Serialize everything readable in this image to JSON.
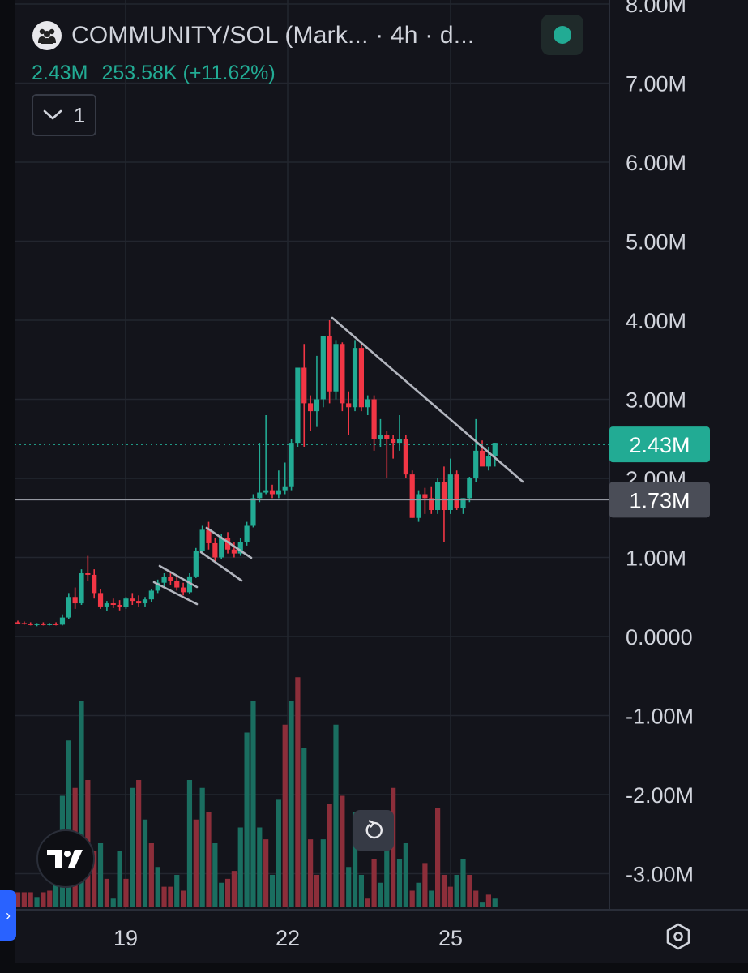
{
  "header": {
    "title": "COMMUNITY/SOL (Mark... · 4h · d...",
    "value": "2.43M",
    "change": "253.58K (+11.62%)",
    "indicator_count": "1"
  },
  "colors": {
    "up": "#22ab94",
    "down": "#f23645",
    "up_volume": "#1a6e60",
    "down_volume": "#8c2e3a",
    "background": "#13141b",
    "grid": "#23262f",
    "text": "#d1d4dc"
  },
  "icons": {
    "avatar": "community-avatar-icon",
    "status": "status-dot-icon",
    "collapse": "chevron-down-icon",
    "reset": "reset-icon",
    "logo": "tradingview-logo-icon",
    "settings": "settings-icon",
    "side_panel": "chevron-right-icon"
  },
  "chart_data": {
    "type": "candlestick",
    "y_axis": {
      "ticks": [
        -3000000,
        -2000000,
        -1000000,
        0,
        1000000,
        2000000,
        3000000,
        4000000,
        5000000,
        6000000,
        7000000,
        8000000
      ],
      "tick_labels": [
        "-3.00M",
        "-2.00M",
        "-1.00M",
        "0.0000",
        "1.00M",
        "2.00M",
        "3.00M",
        "4.00M",
        "5.00M",
        "6.00M",
        "7.00M",
        "8.00M"
      ],
      "range": [
        -3400000,
        8100000
      ]
    },
    "x_axis": {
      "tick_labels": [
        "19",
        "22",
        "25"
      ]
    },
    "price_labels": {
      "last": {
        "value": 2430000,
        "label": "2.43M"
      },
      "crosshair": {
        "value": 1730000,
        "label": "1.73M"
      }
    },
    "grid": true,
    "candles": [
      [
        0.18,
        0.2,
        0.16,
        0.17
      ],
      [
        0.17,
        0.19,
        0.15,
        0.16
      ],
      [
        0.16,
        0.18,
        0.14,
        0.15
      ],
      [
        0.15,
        0.17,
        0.13,
        0.16
      ],
      [
        0.16,
        0.18,
        0.14,
        0.15
      ],
      [
        0.15,
        0.17,
        0.14,
        0.16
      ],
      [
        0.16,
        0.18,
        0.14,
        0.15
      ],
      [
        0.15,
        0.28,
        0.14,
        0.24
      ],
      [
        0.24,
        0.55,
        0.22,
        0.5
      ],
      [
        0.5,
        0.62,
        0.35,
        0.42
      ],
      [
        0.42,
        0.85,
        0.4,
        0.8
      ],
      [
        0.8,
        1.02,
        0.7,
        0.78
      ],
      [
        0.78,
        0.85,
        0.48,
        0.55
      ],
      [
        0.55,
        0.6,
        0.35,
        0.38
      ],
      [
        0.38,
        0.45,
        0.32,
        0.42
      ],
      [
        0.42,
        0.48,
        0.36,
        0.4
      ],
      [
        0.4,
        0.46,
        0.33,
        0.37
      ],
      [
        0.37,
        0.5,
        0.35,
        0.48
      ],
      [
        0.48,
        0.55,
        0.4,
        0.45
      ],
      [
        0.45,
        0.52,
        0.38,
        0.42
      ],
      [
        0.42,
        0.5,
        0.38,
        0.47
      ],
      [
        0.47,
        0.6,
        0.44,
        0.58
      ],
      [
        0.58,
        0.72,
        0.55,
        0.68
      ],
      [
        0.68,
        0.8,
        0.62,
        0.75
      ],
      [
        0.75,
        0.82,
        0.65,
        0.7
      ],
      [
        0.7,
        0.78,
        0.58,
        0.62
      ],
      [
        0.62,
        0.68,
        0.52,
        0.56
      ],
      [
        0.56,
        0.8,
        0.54,
        0.76
      ],
      [
        0.76,
        1.12,
        0.74,
        1.08
      ],
      [
        1.08,
        1.4,
        1.05,
        1.35
      ],
      [
        1.35,
        1.45,
        1.1,
        1.18
      ],
      [
        1.18,
        1.25,
        0.95,
        1.0
      ],
      [
        1.0,
        1.3,
        0.98,
        1.25
      ],
      [
        1.25,
        1.32,
        1.05,
        1.1
      ],
      [
        1.1,
        1.2,
        1.0,
        1.05
      ],
      [
        1.05,
        1.25,
        1.02,
        1.2
      ],
      [
        1.2,
        1.45,
        1.15,
        1.4
      ],
      [
        1.4,
        1.8,
        1.38,
        1.75
      ],
      [
        1.75,
        2.45,
        1.7,
        1.82
      ],
      [
        1.82,
        2.8,
        1.8,
        1.85
      ],
      [
        1.85,
        1.92,
        1.75,
        1.8
      ],
      [
        1.8,
        2.1,
        1.75,
        1.85
      ],
      [
        1.85,
        2.2,
        1.8,
        1.9
      ],
      [
        1.9,
        2.5,
        1.85,
        2.45
      ],
      [
        2.45,
        3.4,
        2.4,
        3.4
      ],
      [
        3.4,
        3.7,
        2.4,
        2.95
      ],
      [
        2.95,
        3.05,
        2.6,
        2.85
      ],
      [
        2.85,
        3.55,
        2.65,
        3.0
      ],
      [
        3.0,
        3.4,
        2.9,
        3.8
      ],
      [
        3.8,
        4.0,
        2.95,
        3.1
      ],
      [
        3.1,
        3.75,
        3.0,
        3.7
      ],
      [
        3.7,
        3.72,
        2.85,
        2.95
      ],
      [
        2.95,
        3.1,
        2.55,
        2.9
      ],
      [
        2.9,
        3.75,
        2.85,
        3.65
      ],
      [
        3.65,
        3.7,
        2.85,
        2.9
      ],
      [
        2.9,
        3.05,
        2.8,
        3.0
      ],
      [
        3.0,
        3.05,
        2.35,
        2.5
      ],
      [
        2.5,
        2.75,
        2.4,
        2.55
      ],
      [
        2.55,
        2.6,
        2.0,
        2.5
      ],
      [
        2.5,
        2.55,
        2.25,
        2.45
      ],
      [
        2.45,
        2.8,
        2.35,
        2.5
      ],
      [
        2.5,
        2.55,
        2.0,
        2.05
      ],
      [
        2.05,
        2.1,
        1.5,
        1.5
      ],
      [
        1.5,
        1.85,
        1.45,
        1.8
      ],
      [
        1.8,
        1.88,
        1.55,
        1.75
      ],
      [
        1.75,
        1.9,
        1.55,
        1.6
      ],
      [
        1.6,
        2.0,
        1.55,
        1.95
      ],
      [
        1.95,
        2.15,
        1.2,
        1.6
      ],
      [
        1.6,
        2.25,
        1.55,
        2.05
      ],
      [
        2.05,
        2.1,
        1.6,
        1.62
      ],
      [
        1.62,
        1.75,
        1.55,
        1.75
      ],
      [
        1.75,
        2.02,
        1.7,
        2.0
      ],
      [
        2.0,
        2.75,
        1.95,
        2.35
      ],
      [
        2.35,
        2.48,
        2.18,
        2.15
      ],
      [
        2.15,
        2.4,
        2.1,
        2.28
      ],
      [
        2.28,
        2.45,
        2.15,
        2.45
      ]
    ],
    "volumes": [
      [
        0.18,
        0
      ],
      [
        0.18,
        0
      ],
      [
        0.18,
        0
      ],
      [
        0.12,
        1
      ],
      [
        0.18,
        0
      ],
      [
        0.2,
        0
      ],
      [
        0.3,
        1
      ],
      [
        1.4,
        1
      ],
      [
        2.1,
        1
      ],
      [
        1.5,
        0
      ],
      [
        2.6,
        1
      ],
      [
        1.6,
        0
      ],
      [
        0.7,
        0
      ],
      [
        0.8,
        1
      ],
      [
        0.35,
        0
      ],
      [
        0.1,
        1
      ],
      [
        0.7,
        1
      ],
      [
        0.35,
        0
      ],
      [
        1.5,
        1
      ],
      [
        1.6,
        0
      ],
      [
        1.1,
        1
      ],
      [
        0.8,
        0
      ],
      [
        0.5,
        1
      ],
      [
        0.25,
        0
      ],
      [
        0.25,
        0
      ],
      [
        0.4,
        1
      ],
      [
        0.2,
        0
      ],
      [
        1.6,
        1
      ],
      [
        1.1,
        0
      ],
      [
        1.5,
        1
      ],
      [
        1.2,
        0
      ],
      [
        0.8,
        1
      ],
      [
        0.3,
        1
      ],
      [
        0.35,
        0
      ],
      [
        0.45,
        0
      ],
      [
        1.0,
        1
      ],
      [
        2.2,
        1
      ],
      [
        2.6,
        1
      ],
      [
        1.0,
        1
      ],
      [
        0.85,
        0
      ],
      [
        0.4,
        1
      ],
      [
        1.35,
        1
      ],
      [
        2.3,
        0
      ],
      [
        2.6,
        1
      ],
      [
        2.9,
        0
      ],
      [
        2.0,
        1
      ],
      [
        0.85,
        0
      ],
      [
        0.4,
        0
      ],
      [
        0.85,
        1
      ],
      [
        1.3,
        0
      ],
      [
        2.3,
        1
      ],
      [
        1.4,
        0
      ],
      [
        0.5,
        1
      ],
      [
        1.2,
        1
      ],
      [
        0.4,
        1
      ],
      [
        0.1,
        0
      ],
      [
        0.6,
        0
      ],
      [
        0.3,
        1
      ],
      [
        0.9,
        1
      ],
      [
        1.5,
        0
      ],
      [
        0.6,
        1
      ],
      [
        0.8,
        1
      ],
      [
        0.2,
        0
      ],
      [
        0.3,
        1
      ],
      [
        0.55,
        0
      ],
      [
        0.2,
        1
      ],
      [
        1.25,
        0
      ],
      [
        0.4,
        0
      ],
      [
        0.25,
        0
      ],
      [
        0.4,
        1
      ],
      [
        0.6,
        1
      ],
      [
        0.4,
        0
      ],
      [
        0.2,
        0
      ],
      [
        0.05,
        1
      ],
      [
        0.15,
        0
      ],
      [
        0.1,
        1
      ]
    ]
  }
}
